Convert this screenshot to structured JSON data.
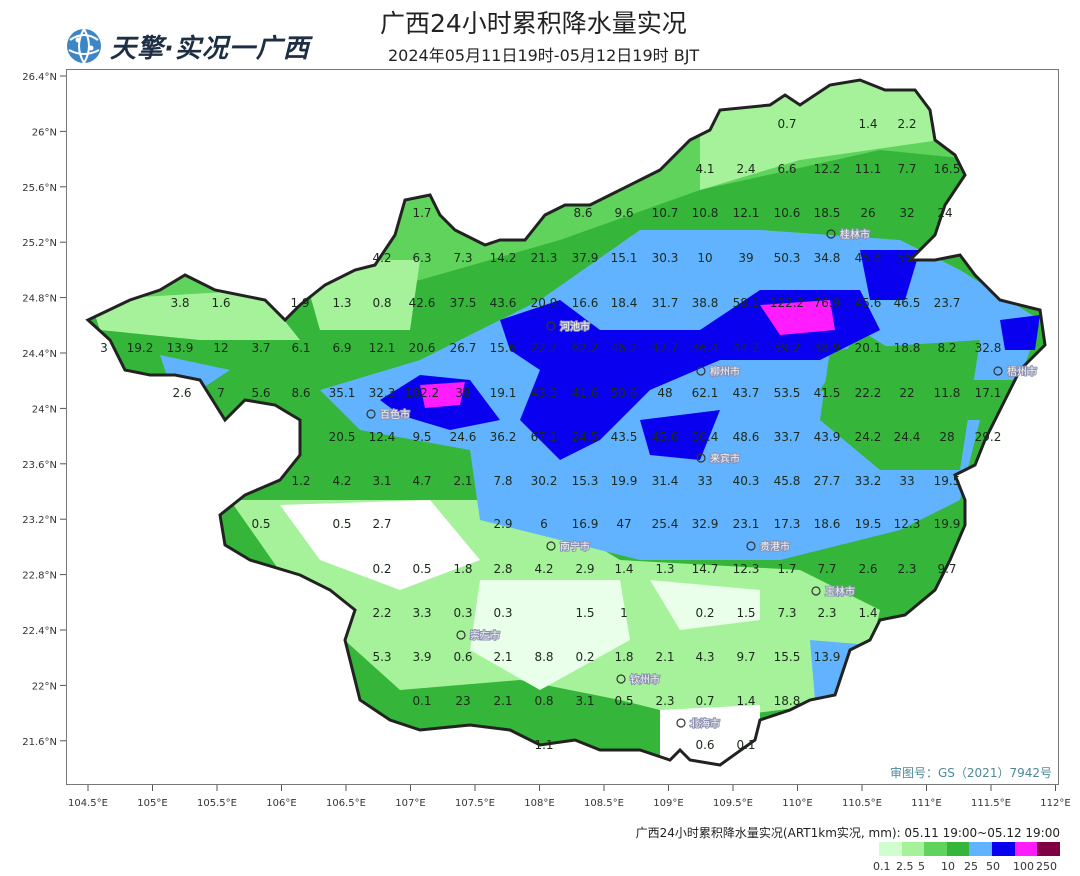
{
  "header": {
    "title": "广西24小时累积降水量实况",
    "subtitle": "2024年05月11日19时-05月12日19时 BJT",
    "logo_text": "天擎·实况一广西"
  },
  "axes": {
    "lat_ticks": [
      "26.4°N",
      "26°N",
      "25.6°N",
      "25.2°N",
      "24.8°N",
      "24.4°N",
      "24°N",
      "23.6°N",
      "23.2°N",
      "22.8°N",
      "22.4°N",
      "22°N",
      "21.6°N"
    ],
    "lon_ticks": [
      "104.5°E",
      "105°E",
      "105.5°E",
      "106°E",
      "106.5°E",
      "107°E",
      "107.5°E",
      "108°E",
      "108.5°E",
      "109°E",
      "109.5°E",
      "110°E",
      "110.5°E",
      "111°E",
      "111.5°E",
      "112°E"
    ]
  },
  "review_number": "审图号：GS（2021）7942号",
  "legend": {
    "title": "广西24小时累积降水量实况(ART1km实况, mm): 05.11 19:00~05.12 19:00",
    "labels": [
      "0.1",
      "2.5",
      "5",
      "10",
      "25",
      "50",
      "100",
      "250"
    ],
    "colors": [
      "#cfffcf",
      "#a6f29a",
      "#5fd35c",
      "#35b53a",
      "#61b3ff",
      "#0a00f0",
      "#ff1cff",
      "#7f0040"
    ]
  },
  "cities": [
    "百色市",
    "河池市",
    "柳州市",
    "来宾市",
    "南宁市",
    "贵港市",
    "玉林市",
    "崇左市",
    "钦州市",
    "北海市",
    "梧州市",
    "桂林市"
  ],
  "stations": [
    [
      "0.7",
      "1.4",
      "2.2"
    ],
    [
      "4.1",
      "2.4",
      "6.6",
      "12.2",
      "11.1",
      "7.7",
      "16.5"
    ],
    [
      "1.7",
      "8.6",
      "9.6",
      "10.7",
      "10.8",
      "12.1",
      "10.6",
      "18.5",
      "26",
      "32",
      "24"
    ],
    [
      "4.2",
      "6.3",
      "7.3",
      "14.2",
      "21.3",
      "37.9",
      "15.1",
      "30.3",
      "10",
      "39",
      "50.3",
      "34.8",
      "45.8",
      "55"
    ],
    [
      "3.8",
      "1.6",
      "1.9",
      "1.3",
      "0.8",
      "42.6",
      "37.5",
      "43.6",
      "20.9",
      "16.6",
      "18.4",
      "31.7",
      "38.8",
      "58.1",
      "122.2",
      "76.9",
      "45.6",
      "46.5",
      "23.7"
    ],
    [
      "3",
      "19.2",
      "13.9",
      "12",
      "3.7",
      "6.1",
      "6.9",
      "12.1",
      "20.6",
      "26.7",
      "15.6",
      "22.2",
      "62.2",
      "46.2",
      "47.7",
      "36.4",
      "44.2",
      "59.2",
      "38.9",
      "20.1",
      "18.8",
      "8.2",
      "32.8"
    ],
    [
      "2.6",
      "7",
      "5.6",
      "8.6",
      "35.1",
      "32.3",
      "102.2",
      "38",
      "19.1",
      "43.5",
      "41.6",
      "50.6",
      "48",
      "62.1",
      "43.7",
      "53.5",
      "41.5",
      "22.2",
      "22",
      "11.8",
      "17.1"
    ],
    [
      "20.5",
      "12.4",
      "9.5",
      "24.6",
      "36.2",
      "67.1",
      "24.5",
      "43.5",
      "45.6",
      "50.4",
      "48.6",
      "33.7",
      "43.9",
      "24.2",
      "24.4",
      "28",
      "29.2"
    ],
    [
      "1.2",
      "4.2",
      "3.1",
      "4.7",
      "2.1",
      "7.8",
      "30.2",
      "15.3",
      "19.9",
      "31.4",
      "33",
      "40.3",
      "45.8",
      "27.7",
      "33.2",
      "33",
      "19.5"
    ],
    [
      "0.5",
      "0.5",
      "2.7",
      "2.9",
      "6",
      "16.9",
      "47",
      "25.4",
      "32.9",
      "23.1",
      "17.3",
      "18.6",
      "19.5",
      "12.3",
      "19.9"
    ],
    [
      "0.2",
      "0.5",
      "1.8",
      "2.8",
      "4.2",
      "2.9",
      "1.4",
      "1.3",
      "14.7",
      "12.3",
      "1.7",
      "7.7",
      "2.6",
      "2.3",
      "9.7"
    ],
    [
      "2.2",
      "3.3",
      "0.3",
      "0.3",
      "1.5",
      "1",
      "0.2",
      "1.5",
      "7.3",
      "2.3",
      "1.4"
    ],
    [
      "5.3",
      "3.9",
      "0.6",
      "2.1",
      "8.8",
      "0.2",
      "1.8",
      "2.1",
      "4.3",
      "9.7",
      "15.5",
      "13.9"
    ],
    [
      "0.1",
      "23",
      "2.1",
      "0.8",
      "3.1",
      "0.5",
      "2.3",
      "0.7",
      "1.4",
      "18.8"
    ],
    [
      "1.1",
      "0.6",
      "0.1"
    ]
  ]
}
